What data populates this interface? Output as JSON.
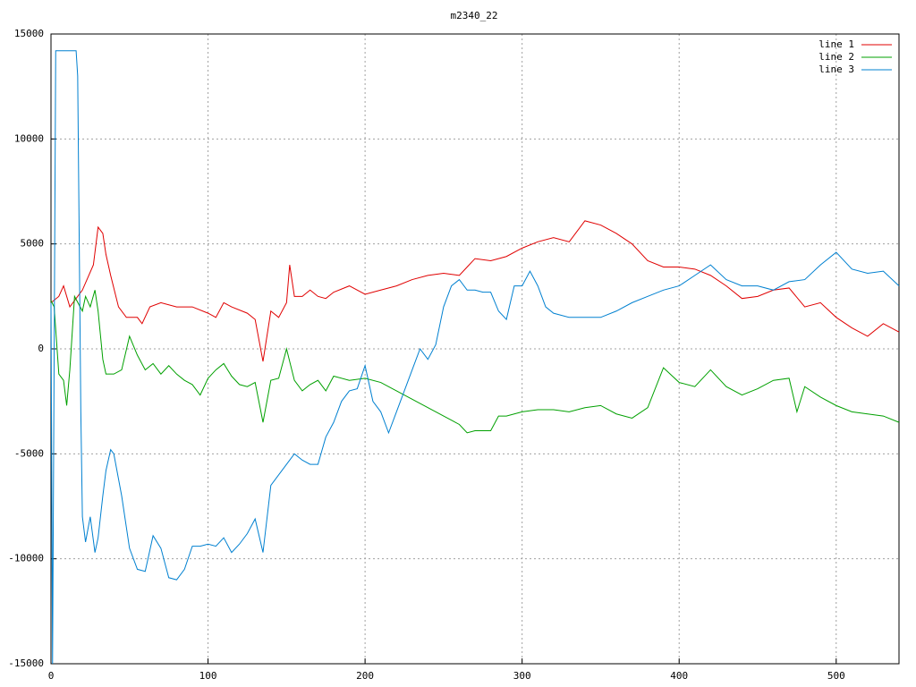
{
  "chart_data": {
    "type": "line",
    "title": "m2340_22",
    "xlim": [
      0,
      540
    ],
    "xticks": [
      0,
      100,
      200,
      300,
      400,
      500
    ],
    "ylim": [
      -15000,
      15000
    ],
    "yticks": [
      -15000,
      -10000,
      -5000,
      0,
      5000,
      10000,
      15000
    ],
    "grid": true,
    "legend": "top-right",
    "series": [
      {
        "name": "line 1",
        "color": "#e00000",
        "x": [
          0,
          5,
          8,
          12,
          20,
          27,
          30,
          33,
          35,
          38,
          43,
          48,
          55,
          58,
          63,
          70,
          80,
          90,
          100,
          105,
          110,
          115,
          125,
          130,
          135,
          140,
          145,
          150,
          152,
          155,
          160,
          165,
          170,
          175,
          180,
          190,
          200,
          210,
          220,
          230,
          240,
          250,
          260,
          265,
          270,
          280,
          290,
          300,
          310,
          320,
          330,
          335,
          340,
          350,
          360,
          370,
          380,
          390,
          400,
          410,
          420,
          430,
          440,
          450,
          460,
          470,
          480,
          490,
          500,
          510,
          520,
          530,
          540
        ],
        "values": [
          2200,
          2500,
          3000,
          2000,
          2800,
          4000,
          5800,
          5500,
          4500,
          3500,
          2000,
          1500,
          1500,
          1200,
          2000,
          2200,
          2000,
          2000,
          1700,
          1500,
          2200,
          2000,
          1700,
          1400,
          -600,
          1800,
          1500,
          2200,
          4000,
          2500,
          2500,
          2800,
          2500,
          2400,
          2700,
          3000,
          2600,
          2800,
          3000,
          3300,
          3500,
          3600,
          3500,
          3900,
          4300,
          4200,
          4400,
          4800,
          5100,
          5300,
          5100,
          5600,
          6100,
          5900,
          5500,
          5000,
          4200,
          3900,
          3900,
          3800,
          3500,
          3000,
          2400,
          2500,
          2800,
          2900,
          2000,
          2200,
          1500,
          1000,
          600,
          1200,
          800
        ]
      },
      {
        "name": "line 2",
        "color": "#00a000",
        "x": [
          0,
          2,
          5,
          8,
          10,
          12,
          15,
          20,
          22,
          25,
          28,
          30,
          33,
          35,
          40,
          45,
          50,
          55,
          60,
          65,
          70,
          75,
          80,
          85,
          90,
          95,
          100,
          105,
          110,
          115,
          120,
          125,
          130,
          135,
          140,
          145,
          150,
          155,
          160,
          165,
          170,
          175,
          180,
          190,
          200,
          210,
          220,
          230,
          240,
          250,
          260,
          265,
          270,
          280,
          285,
          290,
          300,
          310,
          320,
          330,
          340,
          350,
          360,
          370,
          380,
          390,
          400,
          410,
          420,
          430,
          440,
          450,
          460,
          470,
          475,
          480,
          490,
          500,
          510,
          520,
          530,
          540
        ],
        "values": [
          2300,
          2000,
          -1200,
          -1500,
          -2700,
          -1000,
          2500,
          1800,
          2500,
          2000,
          2800,
          1800,
          -500,
          -1200,
          -1200,
          -1000,
          600,
          -300,
          -1000,
          -700,
          -1200,
          -800,
          -1200,
          -1500,
          -1700,
          -2200,
          -1400,
          -1000,
          -700,
          -1300,
          -1700,
          -1800,
          -1600,
          -3500,
          -1500,
          -1400,
          0,
          -1500,
          -2000,
          -1700,
          -1500,
          -2000,
          -1300,
          -1500,
          -1400,
          -1600,
          -2000,
          -2400,
          -2800,
          -3200,
          -3600,
          -4000,
          -3900,
          -3900,
          -3200,
          -3200,
          -3000,
          -2900,
          -2900,
          -3000,
          -2800,
          -2700,
          -3100,
          -3300,
          -2800,
          -900,
          -1600,
          -1800,
          -1000,
          -1800,
          -2200,
          -1900,
          -1500,
          -1400,
          -3000,
          -1800,
          -2300,
          -2700,
          -3000,
          -3100,
          -3200,
          -3500
        ]
      },
      {
        "name": "line 3",
        "color": "#0080d0",
        "x": [
          0,
          1,
          3,
          16,
          17,
          19,
          20,
          22,
          25,
          28,
          30,
          33,
          35,
          38,
          40,
          45,
          50,
          55,
          60,
          65,
          70,
          75,
          80,
          85,
          90,
          95,
          100,
          105,
          110,
          115,
          120,
          125,
          130,
          135,
          140,
          145,
          150,
          155,
          160,
          165,
          170,
          175,
          180,
          185,
          190,
          195,
          200,
          205,
          210,
          215,
          220,
          225,
          230,
          235,
          240,
          245,
          250,
          255,
          260,
          265,
          270,
          275,
          280,
          285,
          290,
          295,
          300,
          305,
          310,
          315,
          320,
          330,
          340,
          350,
          360,
          370,
          380,
          390,
          400,
          410,
          420,
          430,
          440,
          450,
          460,
          470,
          480,
          490,
          500,
          510,
          520,
          530,
          540
        ],
        "values": [
          2200,
          -15000,
          14200,
          14200,
          13000,
          -3000,
          -8000,
          -9200,
          -8000,
          -9700,
          -9000,
          -7000,
          -5800,
          -4800,
          -5000,
          -7000,
          -9500,
          -10500,
          -10600,
          -8900,
          -9500,
          -10900,
          -11000,
          -10500,
          -9400,
          -9400,
          -9300,
          -9400,
          -9000,
          -9700,
          -9300,
          -8800,
          -8100,
          -9700,
          -6500,
          -6000,
          -5500,
          -5000,
          -5300,
          -5500,
          -5500,
          -4200,
          -3500,
          -2500,
          -2000,
          -1900,
          -800,
          -2500,
          -3000,
          -4000,
          -3000,
          -2000,
          -1000,
          0,
          -500,
          200,
          2000,
          3000,
          3300,
          2800,
          2800,
          2700,
          2700,
          1800,
          1400,
          3000,
          3000,
          3700,
          3000,
          2000,
          1700,
          1500,
          1500,
          1500,
          1800,
          2200,
          2500,
          2800,
          3000,
          3500,
          4000,
          3300,
          3000,
          3000,
          2800,
          3200,
          3300,
          4000,
          4600,
          3800,
          3600,
          3700,
          3000
        ]
      }
    ]
  }
}
